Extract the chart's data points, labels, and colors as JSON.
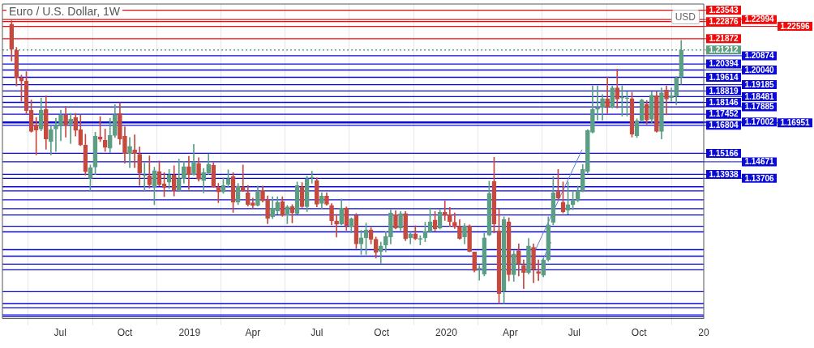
{
  "chart_data": {
    "type": "candlestick",
    "title": "Euro / U.S. Dollar, 1W",
    "annotations": [
      "USD"
    ],
    "colors": [
      "#c6493f",
      "#c6493f",
      "#c6493f",
      "#c6493f",
      "#c6493f",
      "#c6493f",
      "#5a9e84",
      "#c6493f",
      "#5a9e84",
      "#5a9e84",
      "#5a9e84",
      "#c6493f",
      "#5a9e84",
      "#c6493f",
      "#c6493f",
      "#c6493f",
      "#5a9e84",
      "#5a9e84",
      "#c6493f",
      "#c6493f",
      "#5a9e84",
      "#5a9e84",
      "#c6493f",
      "#c6493f",
      "#5a9e84",
      "#c6493f",
      "#c6493f",
      "#5a9e84",
      "#c6493f",
      "#5a9e84",
      "#c6493f",
      "#c6493f",
      "#5a9e84",
      "#c6493f",
      "#5a9e84",
      "#5a9e84",
      "#c6493f",
      "#5a9e84",
      "#c6493f",
      "#5a9e84",
      "#5a9e84",
      "#c6493f",
      "#c6493f",
      "#5a9e84",
      "#5a9e84",
      "#c6493f",
      "#5a9e84",
      "#c6493f",
      "#c6493f",
      "#c6493f",
      "#5a9e84",
      "#c6493f",
      "#c6493f",
      "#5a9e84",
      "#5a9e84",
      "#c6493f",
      "#5a9e84",
      "#c6493f",
      "#5a9e84",
      "#c6493f",
      "#5a9e84",
      "#5a9e84",
      "#c6493f",
      "#5a9e84",
      "#c6493f",
      "#c6493f",
      "#c6493f",
      "#5a9e84",
      "#c6493f",
      "#5a9e84",
      "#c6493f",
      "#5a9e84",
      "#5a9e84",
      "#c6493f",
      "#c6493f",
      "#5a9e84",
      "#5a9e84",
      "#5a9e84",
      "#c6493f",
      "#5a9e84",
      "#c6493f",
      "#5a9e84",
      "#c6493f",
      "#5a9e84",
      "#5a9e84",
      "#5a9e84",
      "#c6493f",
      "#5a9e84",
      "#c6493f",
      "#c6493f",
      "#c6493f",
      "#c6493f",
      "#5a9e84",
      "#c6493f",
      "#c6493f",
      "#5a9e84",
      "#5a9e84",
      "#5a9e84",
      "#c6493f",
      "#c6493f",
      "#5a9e84",
      "#c6493f",
      "#5a9e84",
      "#c6493f",
      "#c6493f",
      "#5a9e84",
      "#c6493f",
      "#c6493f",
      "#5a9e84",
      "#5a9e84",
      "#5a9e84",
      "#c6493f",
      "#c6493f",
      "#5a9e84",
      "#5a9e84",
      "#5a9e84",
      "#5a9e84",
      "#5a9e84",
      "#5a9e84",
      "#5a9e84",
      "#5a9e84",
      "#c6493f",
      "#5a9e84",
      "#c6493f",
      "#5a9e84",
      "#5a9e84",
      "#c6493f",
      "#5a9e84",
      "#5a9e84",
      "#c6493f",
      "#5a9e84",
      "#c6493f",
      "#5a9e84",
      "#c6493f",
      "#5a9e84",
      "#5a9e84",
      "#5a9e84"
    ],
    "grid": "x",
    "legend": false,
    "xlim": [
      "2018-04-10",
      "2021-01-01"
    ],
    "xticks": [
      {
        "value": "2018-07-01",
        "label": "Jul"
      },
      {
        "value": "2018-10-01",
        "label": "Oct"
      },
      {
        "value": "2019-01-01",
        "label": "2019"
      },
      {
        "value": "2019-04-01",
        "label": "Apr"
      },
      {
        "value": "2019-07-01",
        "label": "Jul"
      },
      {
        "value": "2019-10-01",
        "label": "Oct"
      },
      {
        "value": "2020-01-01",
        "label": "2020"
      },
      {
        "value": "2020-04-01",
        "label": "Apr"
      },
      {
        "value": "2020-07-01",
        "label": "Jul"
      },
      {
        "value": "2020-10-01",
        "label": "Oct"
      },
      {
        "value": "2021-01-01",
        "label": "20"
      }
    ],
    "ylim": [
      1.055,
      1.239
    ],
    "x": [
      "2018-04-23",
      "2018-04-30",
      "2018-05-07",
      "2018-05-14",
      "2018-05-21",
      "2018-05-28",
      "2018-06-04",
      "2018-06-11",
      "2018-06-18",
      "2018-06-25",
      "2018-07-02",
      "2018-07-09",
      "2018-07-16",
      "2018-07-23",
      "2018-07-30",
      "2018-08-06",
      "2018-08-13",
      "2018-08-20",
      "2018-08-27",
      "2018-09-03",
      "2018-09-10",
      "2018-09-17",
      "2018-09-24",
      "2018-10-01",
      "2018-10-08",
      "2018-10-15",
      "2018-10-22",
      "2018-10-29",
      "2018-11-05",
      "2018-11-12",
      "2018-11-19",
      "2018-11-26",
      "2018-12-03",
      "2018-12-10",
      "2018-12-17",
      "2018-12-24",
      "2018-12-31",
      "2019-01-07",
      "2019-01-14",
      "2019-01-21",
      "2019-01-28",
      "2019-02-04",
      "2019-02-11",
      "2019-02-18",
      "2019-02-25",
      "2019-03-04",
      "2019-03-11",
      "2019-03-18",
      "2019-03-25",
      "2019-04-01",
      "2019-04-08",
      "2019-04-15",
      "2019-04-22",
      "2019-04-29",
      "2019-05-06",
      "2019-05-13",
      "2019-05-20",
      "2019-05-27",
      "2019-06-03",
      "2019-06-10",
      "2019-06-17",
      "2019-06-24",
      "2019-07-01",
      "2019-07-08",
      "2019-07-15",
      "2019-07-22",
      "2019-07-29",
      "2019-08-05",
      "2019-08-12",
      "2019-08-19",
      "2019-08-26",
      "2019-09-02",
      "2019-09-09",
      "2019-09-16",
      "2019-09-23",
      "2019-09-30",
      "2019-10-07",
      "2019-10-14",
      "2019-10-21",
      "2019-10-28",
      "2019-11-04",
      "2019-11-11",
      "2019-11-18",
      "2019-11-25",
      "2019-12-02",
      "2019-12-09",
      "2019-12-16",
      "2019-12-23",
      "2019-12-30",
      "2020-01-06",
      "2020-01-13",
      "2020-01-20",
      "2020-01-27",
      "2020-02-03",
      "2020-02-10",
      "2020-02-17",
      "2020-02-24",
      "2020-03-02",
      "2020-03-09",
      "2020-03-16",
      "2020-03-23",
      "2020-03-30",
      "2020-04-06",
      "2020-04-13",
      "2020-04-20",
      "2020-04-27",
      "2020-05-04",
      "2020-05-11",
      "2020-05-18",
      "2020-05-25",
      "2020-06-01",
      "2020-06-08",
      "2020-06-15",
      "2020-06-22",
      "2020-06-29",
      "2020-07-06",
      "2020-07-13",
      "2020-07-20",
      "2020-07-27",
      "2020-08-03",
      "2020-08-10",
      "2020-08-17",
      "2020-08-24",
      "2020-08-31",
      "2020-09-07",
      "2020-09-14",
      "2020-09-21",
      "2020-09-28",
      "2020-10-05",
      "2020-10-12",
      "2020-10-19",
      "2020-10-26",
      "2020-11-02",
      "2020-11-09",
      "2020-11-16",
      "2020-11-23",
      "2020-11-30"
    ],
    "ohlc": [
      [
        1.2273,
        1.2293,
        1.2057,
        1.2125
      ],
      [
        1.212,
        1.2136,
        1.1911,
        1.1958
      ],
      [
        1.196,
        1.1974,
        1.1821,
        1.1939
      ],
      [
        1.1939,
        1.1994,
        1.175,
        1.1766
      ],
      [
        1.1768,
        1.1829,
        1.164,
        1.1645
      ],
      [
        1.1683,
        1.1727,
        1.1507,
        1.1653
      ],
      [
        1.1659,
        1.184,
        1.1648,
        1.1769
      ],
      [
        1.1774,
        1.1853,
        1.1541,
        1.1601
      ],
      [
        1.1585,
        1.1676,
        1.1507,
        1.1656
      ],
      [
        1.1659,
        1.1722,
        1.1527,
        1.168
      ],
      [
        1.1675,
        1.1769,
        1.159,
        1.1741
      ],
      [
        1.1741,
        1.179,
        1.1612,
        1.168
      ],
      [
        1.1687,
        1.175,
        1.1574,
        1.1716
      ],
      [
        1.1725,
        1.175,
        1.1617,
        1.1651
      ],
      [
        1.1654,
        1.1742,
        1.1562,
        1.1565
      ],
      [
        1.1565,
        1.1629,
        1.1389,
        1.1409
      ],
      [
        1.137,
        1.1448,
        1.1297,
        1.1433
      ],
      [
        1.1436,
        1.164,
        1.1392,
        1.1617
      ],
      [
        1.1612,
        1.1731,
        1.1585,
        1.1598
      ],
      [
        1.1593,
        1.1659,
        1.1527,
        1.1551
      ],
      [
        1.1546,
        1.1722,
        1.1522,
        1.1621
      ],
      [
        1.1621,
        1.1801,
        1.1609,
        1.1742
      ],
      [
        1.1749,
        1.1813,
        1.1569,
        1.1601
      ],
      [
        1.1617,
        1.1672,
        1.1459,
        1.1514
      ],
      [
        1.1514,
        1.1609,
        1.1433,
        1.1557
      ],
      [
        1.1536,
        1.1625,
        1.1433,
        1.1514
      ],
      [
        1.1511,
        1.1554,
        1.1329,
        1.14
      ],
      [
        1.1387,
        1.1459,
        1.1297,
        1.1387
      ],
      [
        1.1387,
        1.1502,
        1.1313,
        1.1332
      ],
      [
        1.1321,
        1.1436,
        1.1216,
        1.1415
      ],
      [
        1.1411,
        1.1472,
        1.1326,
        1.1332
      ],
      [
        1.1338,
        1.1404,
        1.1263,
        1.1315
      ],
      [
        1.1348,
        1.1423,
        1.131,
        1.1389
      ],
      [
        1.1389,
        1.1444,
        1.1267,
        1.1299
      ],
      [
        1.1299,
        1.1483,
        1.1294,
        1.1368
      ],
      [
        1.1368,
        1.147,
        1.1341,
        1.1439
      ],
      [
        1.1439,
        1.1499,
        1.1305,
        1.1392
      ],
      [
        1.1392,
        1.1569,
        1.1389,
        1.1464
      ],
      [
        1.1458,
        1.1491,
        1.1354,
        1.1365
      ],
      [
        1.1357,
        1.1428,
        1.1286,
        1.1404
      ],
      [
        1.14,
        1.1514,
        1.1392,
        1.1453
      ],
      [
        1.1447,
        1.1462,
        1.1318,
        1.1322
      ],
      [
        1.1318,
        1.1341,
        1.1228,
        1.1291
      ],
      [
        1.1291,
        1.1373,
        1.1282,
        1.1329
      ],
      [
        1.1334,
        1.142,
        1.1318,
        1.1368
      ],
      [
        1.1381,
        1.1404,
        1.1171,
        1.1231
      ],
      [
        1.1231,
        1.1341,
        1.1216,
        1.1326
      ],
      [
        1.1321,
        1.1448,
        1.1294,
        1.1297
      ],
      [
        1.1286,
        1.1329,
        1.1208,
        1.1216
      ],
      [
        1.1227,
        1.1255,
        1.1192,
        1.1211
      ],
      [
        1.1212,
        1.1326,
        1.1208,
        1.1294
      ],
      [
        1.13,
        1.1326,
        1.1231,
        1.1239
      ],
      [
        1.1242,
        1.1267,
        1.1105,
        1.1137
      ],
      [
        1.1145,
        1.1263,
        1.1134,
        1.1197
      ],
      [
        1.1179,
        1.1263,
        1.116,
        1.1231
      ],
      [
        1.1234,
        1.1263,
        1.1148,
        1.1153
      ],
      [
        1.1156,
        1.1212,
        1.1105,
        1.1203
      ],
      [
        1.1206,
        1.1216,
        1.1109,
        1.1168
      ],
      [
        1.1164,
        1.1349,
        1.116,
        1.1329
      ],
      [
        1.1321,
        1.1345,
        1.12,
        1.1204
      ],
      [
        1.1204,
        1.1384,
        1.1176,
        1.1368
      ],
      [
        1.1373,
        1.1412,
        1.1341,
        1.1373
      ],
      [
        1.1357,
        1.1373,
        1.1203,
        1.1219
      ],
      [
        1.1223,
        1.1286,
        1.1192,
        1.1266
      ],
      [
        1.1266,
        1.1286,
        1.1212,
        1.1219
      ],
      [
        1.1212,
        1.1223,
        1.1098,
        1.1121
      ],
      [
        1.1121,
        1.116,
        1.1027,
        1.1101
      ],
      [
        1.1102,
        1.125,
        1.1098,
        1.1197
      ],
      [
        1.1197,
        1.1203,
        1.1066,
        1.1093
      ],
      [
        1.109,
        1.114,
        1.105,
        1.1134
      ],
      [
        1.1153,
        1.1165,
        1.0961,
        1.0987
      ],
      [
        1.0987,
        1.1066,
        1.0925,
        1.1022
      ],
      [
        1.1022,
        1.1109,
        1.0925,
        1.1069
      ],
      [
        1.1069,
        1.1082,
        1.0987,
        1.1014
      ],
      [
        1.1014,
        1.1027,
        1.0904,
        1.0937
      ],
      [
        1.0943,
        1.0998,
        1.0873,
        1.0975
      ],
      [
        1.098,
        1.1058,
        1.094,
        1.1031
      ],
      [
        1.1027,
        1.1184,
        1.0987,
        1.1168
      ],
      [
        1.1157,
        1.1181,
        1.1074,
        1.1079
      ],
      [
        1.1079,
        1.1176,
        1.1066,
        1.1164
      ],
      [
        1.1164,
        1.1176,
        1.1006,
        1.1016
      ],
      [
        1.1022,
        1.1055,
        1.0987,
        1.1046
      ],
      [
        1.1046,
        1.1093,
        1.1011,
        1.1016
      ],
      [
        1.1014,
        1.1035,
        1.098,
        1.1014
      ],
      [
        1.1022,
        1.1113,
        1.1,
        1.1058
      ],
      [
        1.1058,
        1.1197,
        1.1053,
        1.1116
      ],
      [
        1.1126,
        1.1176,
        1.1063,
        1.1074
      ],
      [
        1.1079,
        1.1187,
        1.1074,
        1.1171
      ],
      [
        1.1171,
        1.1239,
        1.1124,
        1.1153
      ],
      [
        1.116,
        1.12,
        1.109,
        1.1118
      ],
      [
        1.1113,
        1.1168,
        1.1077,
        1.1087
      ],
      [
        1.109,
        1.1129,
        1.1014,
        1.1019
      ],
      [
        1.1027,
        1.1105,
        1.0987,
        1.1093
      ],
      [
        1.1093,
        1.1098,
        1.094,
        1.0943
      ],
      [
        1.094,
        1.094,
        1.0822,
        1.083
      ],
      [
        1.0841,
        1.0862,
        1.0775,
        1.0841
      ],
      [
        1.081,
        1.105,
        1.0799,
        1.1022
      ],
      [
        1.1039,
        1.1354,
        1.1035,
        1.1283
      ],
      [
        1.1352,
        1.1494,
        1.105,
        1.1102
      ],
      [
        1.1063,
        1.1192,
        1.0637,
        1.0696
      ],
      [
        1.0709,
        1.1145,
        1.0637,
        1.1129
      ],
      [
        1.1116,
        1.114,
        1.077,
        1.0807
      ],
      [
        1.0807,
        1.0948,
        1.0767,
        1.0928
      ],
      [
        1.0948,
        1.0987,
        1.0799,
        1.0869
      ],
      [
        1.0862,
        1.0893,
        1.0725,
        1.0819
      ],
      [
        1.0819,
        1.1019,
        1.081,
        1.0975
      ],
      [
        1.0967,
        1.0987,
        1.0759,
        1.0838
      ],
      [
        1.0825,
        1.0893,
        1.0772,
        1.0814
      ],
      [
        1.0803,
        1.0901,
        1.0794,
        1.0893
      ],
      [
        1.0893,
        1.1145,
        1.0885,
        1.1098
      ],
      [
        1.1113,
        1.1381,
        1.1098,
        1.1286
      ],
      [
        1.1294,
        1.1423,
        1.1247,
        1.1255
      ],
      [
        1.1231,
        1.1349,
        1.1168,
        1.1173
      ],
      [
        1.1184,
        1.1349,
        1.116,
        1.1216
      ],
      [
        1.1216,
        1.1294,
        1.1187,
        1.1242
      ],
      [
        1.1239,
        1.1326,
        1.1234,
        1.1297
      ],
      [
        1.1299,
        1.1451,
        1.1291,
        1.1423
      ],
      [
        1.1412,
        1.1656,
        1.1401,
        1.1651
      ],
      [
        1.164,
        1.1911,
        1.1635,
        1.1774
      ],
      [
        1.1774,
        1.1911,
        1.1711,
        1.1785
      ],
      [
        1.1786,
        1.186,
        1.1711,
        1.1837
      ],
      [
        1.1837,
        1.1963,
        1.175,
        1.179
      ],
      [
        1.1786,
        1.1911,
        1.1782,
        1.19
      ],
      [
        1.19,
        1.201,
        1.1782,
        1.1834
      ],
      [
        1.184,
        1.1911,
        1.1735,
        1.184
      ],
      [
        1.1837,
        1.1876,
        1.1735,
        1.1837
      ],
      [
        1.1837,
        1.1873,
        1.1612,
        1.1628
      ],
      [
        1.162,
        1.1719,
        1.1609,
        1.1708
      ],
      [
        1.1708,
        1.1834,
        1.17,
        1.1829
      ],
      [
        1.1805,
        1.1826,
        1.1687,
        1.1711
      ],
      [
        1.1716,
        1.1876,
        1.1695,
        1.1857
      ],
      [
        1.1853,
        1.1876,
        1.164,
        1.1645
      ],
      [
        1.1645,
        1.19,
        1.1601,
        1.1871
      ],
      [
        1.1887,
        1.1911,
        1.1742,
        1.1834
      ],
      [
        1.1842,
        1.19,
        1.1821,
        1.1853
      ],
      [
        1.1849,
        1.1966,
        1.1801,
        1.196
      ],
      [
        1.1963,
        1.2178,
        1.192,
        1.212
      ]
    ],
    "series": [
      {
        "type": "line",
        "color": "#5b7fd6",
        "x": [
          "2020-05-02",
          "2020-07-12"
        ],
        "values": [
          1.091,
          1.1538
        ]
      },
      {
        "type": "line",
        "color": "#5b7fd6",
        "x": [
          "2020-05-17",
          "2020-05-29"
        ],
        "values": [
          1.0893,
          1.0997
        ]
      }
    ],
    "ref_lines": [
      {
        "axis": "y",
        "value": 1.23543,
        "label": "1.23543",
        "color": "#f20a0a"
      },
      {
        "axis": "y",
        "value": 1.22876,
        "label": "1.22876",
        "color": "#f20a0a"
      },
      {
        "axis": "y",
        "value": 1.22994,
        "label": "1.22994",
        "color": "#f20a0a"
      },
      {
        "axis": "y",
        "value": 1.22596,
        "label": "1.22596",
        "color": "#f20a0a"
      },
      {
        "axis": "y",
        "value": 1.21872,
        "label": "1.21872",
        "color": "#f20a0a"
      },
      {
        "axis": "y",
        "value": 1.21212,
        "label": "1.21212",
        "color": "#5f9e80",
        "line_style": "dotted"
      },
      {
        "axis": "y",
        "value": 1.20874,
        "label": "1.20874",
        "color": "#0a0ad8"
      },
      {
        "axis": "y",
        "value": 1.20394,
        "label": "1.20394",
        "color": "#0a0ad8"
      },
      {
        "axis": "y",
        "value": 1.2004,
        "label": "1.20040",
        "color": "#0a0ad8"
      },
      {
        "axis": "y",
        "value": 1.19614,
        "label": "1.19614",
        "color": "#0a0ad8"
      },
      {
        "axis": "y",
        "value": 1.19185,
        "label": "1.19185",
        "color": "#0a0ad8"
      },
      {
        "axis": "y",
        "value": 1.18819,
        "label": "1.18819",
        "color": "#0a0ad8"
      },
      {
        "axis": "y",
        "value": 1.18481,
        "label": "1.18481",
        "color": "#0a0ad8"
      },
      {
        "axis": "y",
        "value": 1.18146,
        "label": "1.18146",
        "color": "#0a0ad8"
      },
      {
        "axis": "y",
        "value": 1.17885,
        "label": "1.17885",
        "color": "#0a0ad8"
      },
      {
        "axis": "y",
        "value": 1.17452,
        "label": "1.17452",
        "color": "#0a0ad8"
      },
      {
        "axis": "y",
        "value": 1.17002,
        "label": "1.17002",
        "color": "#0a0ad8"
      },
      {
        "axis": "y",
        "value": 1.16951,
        "label": "1.16951",
        "color": "#0a0ad8"
      },
      {
        "axis": "y",
        "value": 1.16804,
        "label": "1.16804",
        "color": "#0a0ad8"
      },
      {
        "axis": "y",
        "value": 1.15166,
        "label": "1.15166",
        "color": "#0a0ad8"
      },
      {
        "axis": "y",
        "value": 1.14671,
        "label": "1.14671",
        "color": "#0a0ad8"
      },
      {
        "axis": "y",
        "value": 1.13938,
        "label": "1.13938",
        "color": "#0a0ad8"
      },
      {
        "axis": "y",
        "value": 1.13706,
        "label": "1.13706",
        "color": "#0a0ad8"
      },
      {
        "axis": "y",
        "value": 1.1321,
        "color": "#0a0ad8"
      },
      {
        "axis": "y",
        "value": 1.1297,
        "color": "#0a0ad8"
      },
      {
        "axis": "y",
        "value": 1.1245,
        "color": "#0a0ad8"
      },
      {
        "axis": "y",
        "value": 1.1193,
        "color": "#0a0ad8"
      },
      {
        "axis": "y",
        "value": 1.1156,
        "color": "#0a0ad8"
      },
      {
        "axis": "y",
        "value": 1.109,
        "color": "#0a0ad8"
      },
      {
        "axis": "y",
        "value": 1.1057,
        "color": "#0a0ad8"
      },
      {
        "axis": "y",
        "value": 1.0953,
        "color": "#0a0ad8"
      },
      {
        "axis": "y",
        "value": 1.0915,
        "color": "#0a0ad8"
      },
      {
        "axis": "y",
        "value": 1.0868,
        "color": "#0a0ad8"
      },
      {
        "axis": "y",
        "value": 1.0835,
        "color": "#0a0ad8"
      },
      {
        "axis": "y",
        "value": 1.0707,
        "color": "#0a0ad8"
      },
      {
        "axis": "y",
        "value": 1.0637,
        "color": "#0a0ad8"
      },
      {
        "axis": "y",
        "value": 1.0613,
        "color": "#0a0ad8"
      },
      {
        "axis": "y",
        "value": 1.0571,
        "color": "#0a0ad8"
      },
      {
        "axis": "y",
        "value": 1.0561,
        "color": "#0a0ad8"
      }
    ]
  }
}
